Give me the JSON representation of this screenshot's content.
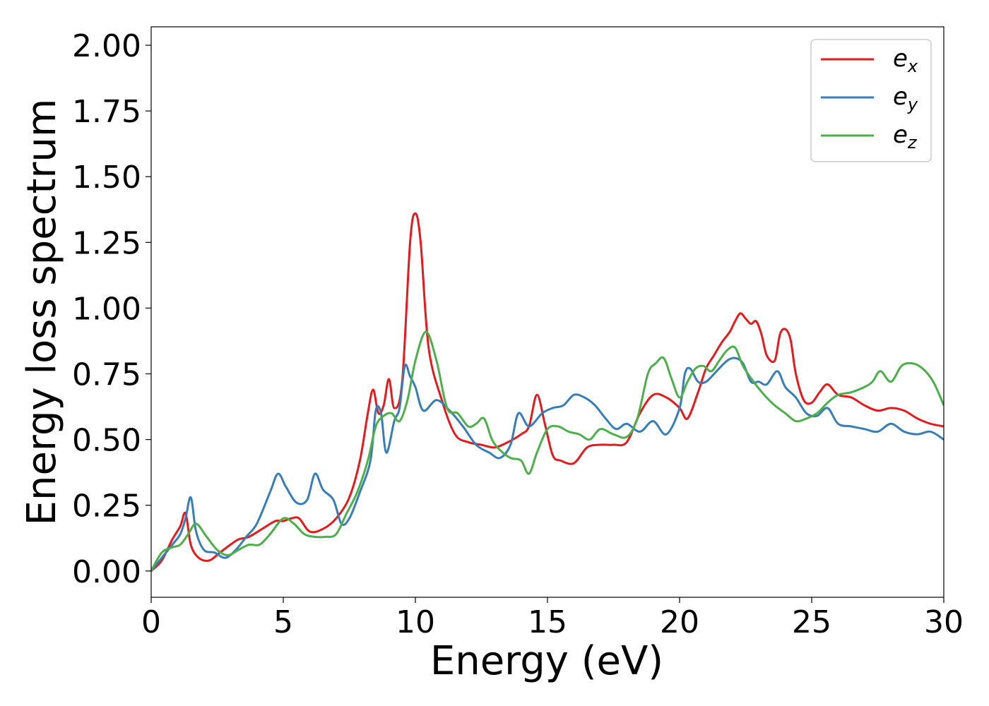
{
  "chart_data": {
    "type": "line",
    "xlabel": "Energy (eV)",
    "ylabel": "Energy loss spectrum",
    "xlim": [
      0,
      30
    ],
    "ylim": [
      -0.1,
      2.07
    ],
    "xticks": [
      0,
      5,
      10,
      15,
      20,
      25,
      30
    ],
    "xtick_labels": [
      "0",
      "5",
      "10",
      "15",
      "20",
      "25",
      "30"
    ],
    "yticks": [
      0.0,
      0.25,
      0.5,
      0.75,
      1.0,
      1.25,
      1.5,
      1.75,
      2.0
    ],
    "ytick_labels": [
      "0.00",
      "0.25",
      "0.50",
      "0.75",
      "1.00",
      "1.25",
      "1.50",
      "1.75",
      "2.00"
    ],
    "grid": false,
    "legend_position": "top-right",
    "series": [
      {
        "name": "e_x",
        "label_base": "e",
        "label_sub": "x",
        "color": "#e41a1c",
        "x": [
          0,
          0.4,
          0.8,
          1.1,
          1.3,
          1.5,
          1.8,
          2.2,
          2.6,
          3.0,
          3.3,
          3.7,
          4.2,
          4.7,
          5.0,
          5.3,
          5.6,
          6.0,
          6.5,
          7.0,
          7.5,
          7.9,
          8.2,
          8.4,
          8.6,
          8.8,
          9.0,
          9.2,
          9.5,
          9.8,
          10.0,
          10.2,
          10.5,
          11.0,
          11.5,
          12.0,
          12.5,
          13.0,
          13.5,
          14.0,
          14.3,
          14.6,
          14.9,
          15.2,
          15.5,
          16.0,
          16.5,
          17.0,
          17.5,
          18.0,
          18.5,
          19.0,
          19.5,
          20.0,
          20.3,
          20.7,
          21.0,
          21.3,
          21.6,
          21.9,
          22.1,
          22.3,
          22.5,
          22.7,
          22.9,
          23.1,
          23.3,
          23.6,
          23.8,
          24.0,
          24.2,
          24.4,
          24.7,
          25.0,
          25.3,
          25.6,
          26.0,
          26.5,
          27.0,
          27.5,
          28.0,
          28.5,
          29.0,
          29.5,
          30.0
        ],
        "y": [
          0.0,
          0.04,
          0.12,
          0.17,
          0.22,
          0.1,
          0.05,
          0.04,
          0.07,
          0.1,
          0.12,
          0.13,
          0.16,
          0.19,
          0.19,
          0.2,
          0.2,
          0.15,
          0.16,
          0.2,
          0.28,
          0.42,
          0.6,
          0.69,
          0.6,
          0.63,
          0.73,
          0.62,
          0.72,
          1.25,
          1.36,
          1.25,
          0.85,
          0.65,
          0.52,
          0.49,
          0.48,
          0.47,
          0.49,
          0.52,
          0.55,
          0.67,
          0.56,
          0.44,
          0.42,
          0.41,
          0.47,
          0.48,
          0.48,
          0.49,
          0.6,
          0.67,
          0.66,
          0.62,
          0.58,
          0.68,
          0.77,
          0.82,
          0.87,
          0.91,
          0.95,
          0.98,
          0.96,
          0.94,
          0.95,
          0.9,
          0.82,
          0.8,
          0.9,
          0.92,
          0.88,
          0.75,
          0.65,
          0.64,
          0.68,
          0.71,
          0.67,
          0.66,
          0.63,
          0.61,
          0.62,
          0.61,
          0.58,
          0.56,
          0.55
        ]
      },
      {
        "name": "e_y",
        "label_base": "e",
        "label_sub": "y",
        "color": "#377eb8",
        "x": [
          0,
          0.4,
          0.8,
          1.1,
          1.3,
          1.5,
          1.7,
          2.0,
          2.4,
          2.8,
          3.2,
          3.6,
          4.0,
          4.5,
          4.8,
          5.1,
          5.5,
          5.9,
          6.2,
          6.5,
          6.9,
          7.2,
          7.5,
          7.9,
          8.3,
          8.5,
          8.7,
          8.9,
          9.2,
          9.4,
          9.6,
          9.8,
          10.0,
          10.3,
          10.8,
          11.3,
          11.8,
          12.3,
          12.8,
          13.2,
          13.6,
          13.9,
          14.3,
          14.8,
          15.2,
          15.6,
          16.0,
          16.4,
          16.8,
          17.2,
          17.6,
          18.0,
          18.5,
          19.0,
          19.5,
          20.0,
          20.2,
          20.4,
          20.7,
          21.0,
          21.4,
          21.8,
          22.1,
          22.4,
          22.7,
          23.0,
          23.3,
          23.7,
          24.0,
          24.4,
          24.8,
          25.2,
          25.6,
          26.0,
          26.5,
          27.0,
          27.5,
          28.0,
          28.5,
          29.0,
          29.5,
          30.0
        ],
        "y": [
          0.0,
          0.05,
          0.1,
          0.14,
          0.2,
          0.28,
          0.15,
          0.08,
          0.07,
          0.05,
          0.08,
          0.13,
          0.18,
          0.3,
          0.37,
          0.32,
          0.26,
          0.27,
          0.37,
          0.31,
          0.27,
          0.18,
          0.2,
          0.3,
          0.42,
          0.61,
          0.6,
          0.45,
          0.57,
          0.62,
          0.78,
          0.74,
          0.7,
          0.61,
          0.65,
          0.61,
          0.55,
          0.48,
          0.45,
          0.43,
          0.48,
          0.6,
          0.55,
          0.6,
          0.62,
          0.63,
          0.67,
          0.66,
          0.63,
          0.58,
          0.54,
          0.56,
          0.53,
          0.57,
          0.52,
          0.62,
          0.75,
          0.77,
          0.72,
          0.72,
          0.76,
          0.8,
          0.81,
          0.79,
          0.72,
          0.72,
          0.71,
          0.76,
          0.7,
          0.66,
          0.6,
          0.59,
          0.62,
          0.56,
          0.55,
          0.54,
          0.53,
          0.56,
          0.53,
          0.52,
          0.53,
          0.5
        ]
      },
      {
        "name": "e_z",
        "label_base": "e",
        "label_sub": "z",
        "color": "#4daf4a",
        "x": [
          0,
          0.4,
          0.8,
          1.1,
          1.4,
          1.7,
          2.1,
          2.5,
          2.9,
          3.3,
          3.7,
          4.1,
          4.5,
          5.0,
          5.4,
          5.8,
          6.2,
          6.6,
          7.0,
          7.4,
          7.8,
          8.2,
          8.5,
          8.8,
          9.1,
          9.4,
          9.7,
          10.0,
          10.4,
          10.8,
          11.2,
          11.6,
          12.0,
          12.3,
          12.6,
          12.9,
          13.2,
          13.6,
          14.0,
          14.3,
          14.6,
          15.0,
          15.4,
          15.8,
          16.2,
          16.6,
          17.0,
          17.5,
          18.0,
          18.4,
          18.8,
          19.1,
          19.4,
          19.7,
          20.0,
          20.3,
          20.6,
          20.9,
          21.2,
          21.5,
          21.8,
          22.1,
          22.4,
          22.8,
          23.2,
          23.6,
          24.0,
          24.4,
          24.8,
          25.2,
          25.6,
          26.0,
          26.5,
          27.0,
          27.3,
          27.6,
          28.0,
          28.4,
          28.8,
          29.2,
          29.6,
          30.0
        ],
        "y": [
          0.0,
          0.07,
          0.09,
          0.1,
          0.14,
          0.18,
          0.13,
          0.08,
          0.06,
          0.08,
          0.1,
          0.1,
          0.14,
          0.2,
          0.18,
          0.14,
          0.13,
          0.13,
          0.14,
          0.22,
          0.3,
          0.42,
          0.55,
          0.59,
          0.6,
          0.57,
          0.65,
          0.8,
          0.91,
          0.8,
          0.62,
          0.6,
          0.55,
          0.56,
          0.58,
          0.5,
          0.46,
          0.43,
          0.42,
          0.37,
          0.45,
          0.54,
          0.55,
          0.53,
          0.52,
          0.5,
          0.54,
          0.52,
          0.51,
          0.58,
          0.75,
          0.79,
          0.81,
          0.73,
          0.66,
          0.72,
          0.77,
          0.78,
          0.76,
          0.8,
          0.84,
          0.85,
          0.78,
          0.72,
          0.67,
          0.63,
          0.6,
          0.57,
          0.58,
          0.6,
          0.64,
          0.67,
          0.68,
          0.7,
          0.72,
          0.76,
          0.72,
          0.78,
          0.79,
          0.77,
          0.72,
          0.63
        ]
      }
    ]
  }
}
